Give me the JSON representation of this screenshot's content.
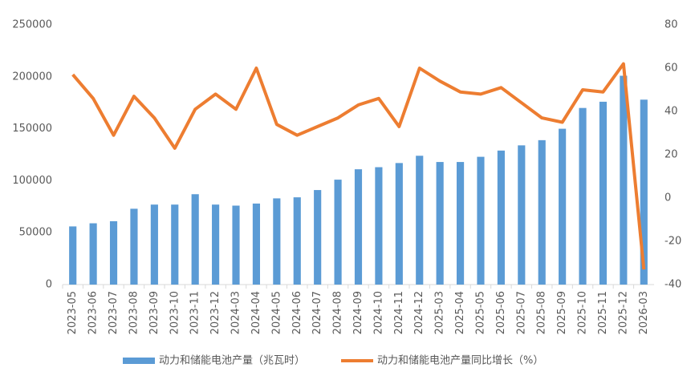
{
  "chart_data": {
    "type": "bar_line",
    "categories": [
      "2023-05",
      "2023-06",
      "2023-07",
      "2023-08",
      "2023-09",
      "2023-10",
      "2023-11",
      "2023-12",
      "2024-03",
      "2024-04",
      "2024-05",
      "2024-06",
      "2024-07",
      "2024-08",
      "2024-09",
      "2024-10",
      "2024-11",
      "2024-12",
      "2025-03",
      "2025-04",
      "2025-05",
      "2025-06",
      "2025-07",
      "2025-08",
      "2025-09",
      "2025-10",
      "2025-11",
      "2025-12",
      "2026-03"
    ],
    "series": [
      {
        "name": "动力和储能电池产量（兆瓦时）",
        "type": "bar",
        "color": "#5b9bd5",
        "values": [
          56000,
          59000,
          61000,
          73000,
          77000,
          77000,
          87000,
          77000,
          76000,
          78000,
          83000,
          84000,
          91000,
          101000,
          111000,
          113000,
          117000,
          124000,
          118000,
          118000,
          123000,
          129000,
          134000,
          139000,
          150000,
          170000,
          176000,
          201000,
          178000
        ]
      },
      {
        "name": "动力和储能电池产量同比增长（%）",
        "type": "line",
        "axis": "y2",
        "color": "#ed7d31",
        "values": [
          57,
          46,
          29,
          47,
          37,
          23,
          41,
          48,
          41,
          60,
          34,
          29,
          33,
          37,
          43,
          46,
          33,
          60,
          54,
          49,
          48,
          51,
          44,
          37,
          35,
          50,
          49,
          62,
          -33
        ]
      }
    ],
    "ylim": [
      0,
      250000
    ],
    "yticks": [
      0,
      50000,
      100000,
      150000,
      200000,
      250000
    ],
    "y2lim": [
      -40,
      80
    ],
    "y2ticks": [
      -40,
      -20,
      0,
      20,
      40,
      60,
      80
    ],
    "legend": "bottom"
  }
}
